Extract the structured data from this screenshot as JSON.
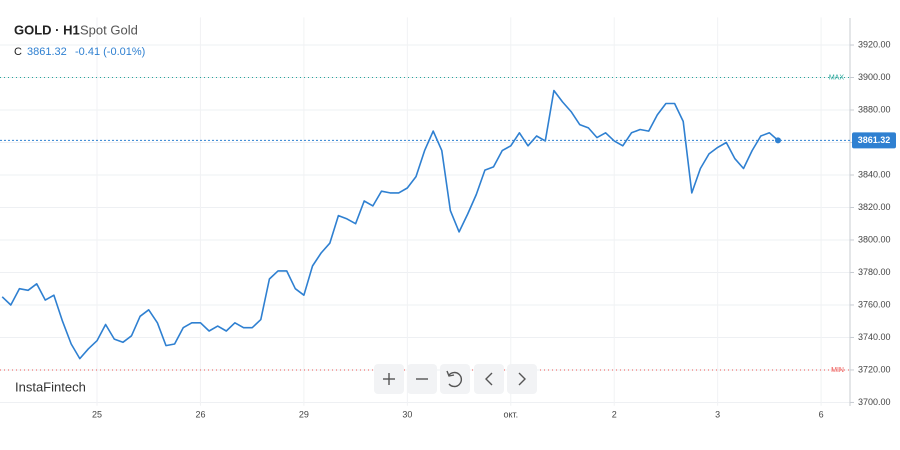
{
  "header": {
    "symbol": "GOLD · H1",
    "name": "Spot Gold",
    "close_label": "C",
    "change": "-0.41 (-0.01%)"
  },
  "watermark": "InstaFintech",
  "chart_data": {
    "type": "line",
    "color": "#2f80d1",
    "categories": [
      null,
      null,
      null,
      null,
      null,
      null,
      null,
      null,
      null,
      null,
      null,
      "25",
      null,
      null,
      null,
      null,
      null,
      null,
      null,
      null,
      null,
      null,
      null,
      "26",
      null,
      null,
      null,
      null,
      null,
      null,
      null,
      null,
      null,
      null,
      null,
      "29",
      null,
      null,
      null,
      null,
      null,
      null,
      null,
      null,
      null,
      null,
      null,
      "30",
      null,
      null,
      null,
      null,
      null,
      null,
      null,
      null,
      null,
      null,
      null,
      "окт.",
      null,
      null,
      null,
      null,
      null,
      null,
      null,
      null,
      null,
      null,
      null,
      "2",
      null,
      null,
      null,
      null,
      null,
      null,
      null,
      null,
      null,
      null,
      null,
      "3",
      null,
      null,
      null,
      null,
      null,
      null,
      null,
      null,
      null,
      null,
      null,
      "6"
    ],
    "values": [
      3765,
      3760,
      3770,
      3769,
      3773,
      3763,
      3766,
      3750,
      3736,
      3727,
      3733,
      3738,
      3748,
      3739,
      3737,
      3741,
      3753,
      3757,
      3749,
      3735,
      3736,
      3746,
      3749,
      3749,
      3744,
      3747,
      3744,
      3749,
      3746,
      3746,
      3751,
      3776,
      3781,
      3781,
      3770,
      3766,
      3784,
      3792,
      3798,
      3815,
      3813,
      3810,
      3824,
      3821,
      3830,
      3829,
      3829,
      3832,
      3839,
      3855,
      3867,
      3855,
      3818,
      3805,
      3816,
      3828,
      3843,
      3845,
      3855,
      3858,
      3866,
      3858,
      3864,
      3861,
      3892,
      3885,
      3879,
      3871,
      3869,
      3863,
      3866,
      3861,
      3858,
      3866,
      3868,
      3867,
      3877,
      3884,
      3884,
      3873,
      3829,
      3844,
      3853,
      3857,
      3860,
      3850,
      3844,
      3855,
      3864,
      3866,
      3861.32,
      null,
      null,
      null,
      null,
      null
    ],
    "ylim": [
      3698,
      3937
    ],
    "yticks": [
      {
        "value": 3700,
        "label": "3700.00"
      },
      {
        "value": 3720,
        "label": "3720.00"
      },
      {
        "value": 3740,
        "label": "3740.00"
      },
      {
        "value": 3760,
        "label": "3760.00"
      },
      {
        "value": 3780,
        "label": "3780.00"
      },
      {
        "value": 3800,
        "label": "3800.00"
      },
      {
        "value": 3820,
        "label": "3820.00"
      },
      {
        "value": 3840,
        "label": "3840.00"
      },
      {
        "value": 3860,
        "label": "3860.00"
      },
      {
        "value": 3880,
        "label": "3880.00"
      },
      {
        "value": 3900,
        "label": "3900.00"
      },
      {
        "value": 3920,
        "label": "3920.00"
      }
    ],
    "grid": true,
    "max_line": {
      "label": "MAX",
      "value": 3900,
      "color": "#26a69a"
    },
    "min_line": {
      "label": "MIN",
      "value": 3720,
      "color": "#ef5350"
    }
  }
}
